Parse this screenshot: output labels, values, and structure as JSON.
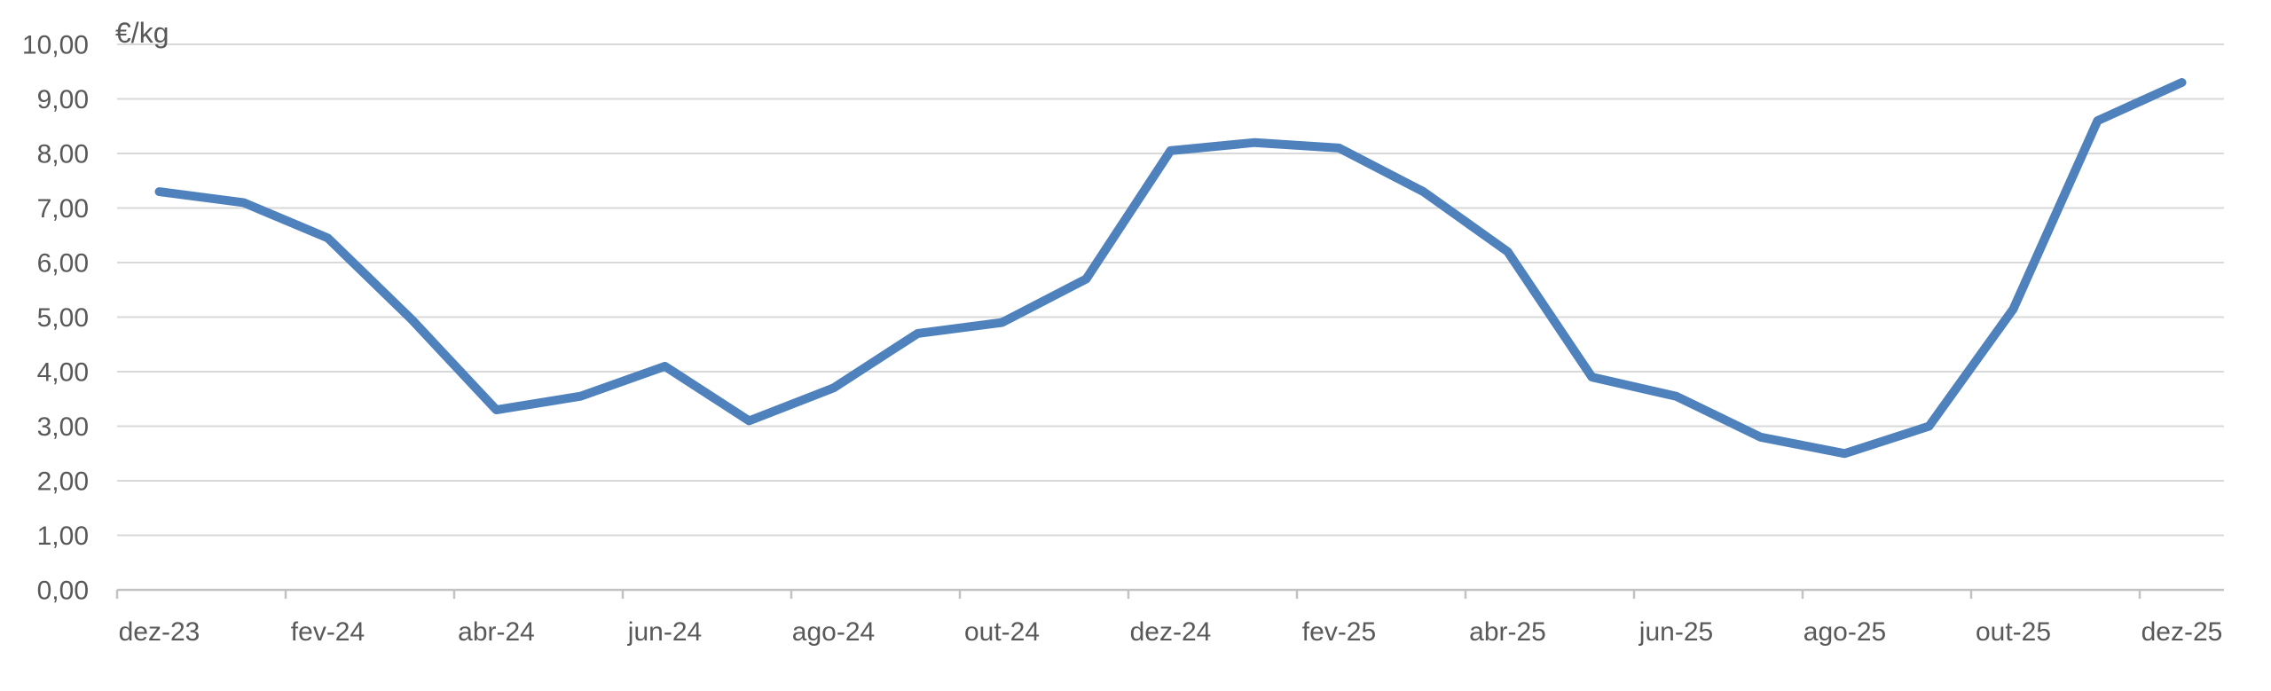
{
  "chart_data": {
    "type": "line",
    "title": "",
    "unit_label": "€/kg",
    "x_months": [
      "dez-23",
      "jan-24",
      "fev-24",
      "mar-24",
      "abr-24",
      "mai-24",
      "jun-24",
      "jul-24",
      "ago-24",
      "set-24",
      "out-24",
      "nov-24",
      "dez-24",
      "jan-25",
      "fev-25",
      "mar-25",
      "abr-25",
      "mai-25",
      "jun-25",
      "jul-25",
      "ago-25",
      "set-25",
      "out-25",
      "nov-25",
      "dez-25"
    ],
    "x_axis_tick_labels": [
      "dez-23",
      "fev-24",
      "abr-24",
      "jun-24",
      "ago-24",
      "out-24",
      "dez-24",
      "fev-25",
      "abr-25",
      "jun-25",
      "ago-25",
      "out-25",
      "dez-25"
    ],
    "series": [
      {
        "name": "€/kg",
        "values": [
          7.3,
          7.1,
          6.45,
          4.95,
          3.3,
          3.55,
          4.1,
          3.1,
          3.7,
          4.7,
          4.9,
          5.7,
          8.05,
          8.2,
          8.1,
          7.3,
          6.2,
          3.9,
          3.55,
          2.8,
          2.5,
          3.0,
          5.15,
          8.6,
          9.3
        ]
      }
    ],
    "ylim": [
      0,
      10
    ],
    "y_tick_step": 1,
    "y_tick_labels": [
      "0,00",
      "1,00",
      "2,00",
      "3,00",
      "4,00",
      "5,00",
      "6,00",
      "7,00",
      "8,00",
      "9,00",
      "10,00"
    ],
    "grid": true,
    "legend": "none",
    "colors": {
      "line": "#4f81bd",
      "gridline": "#d9d9d9",
      "axis": "#c3c3c3",
      "text": "#595959"
    }
  }
}
